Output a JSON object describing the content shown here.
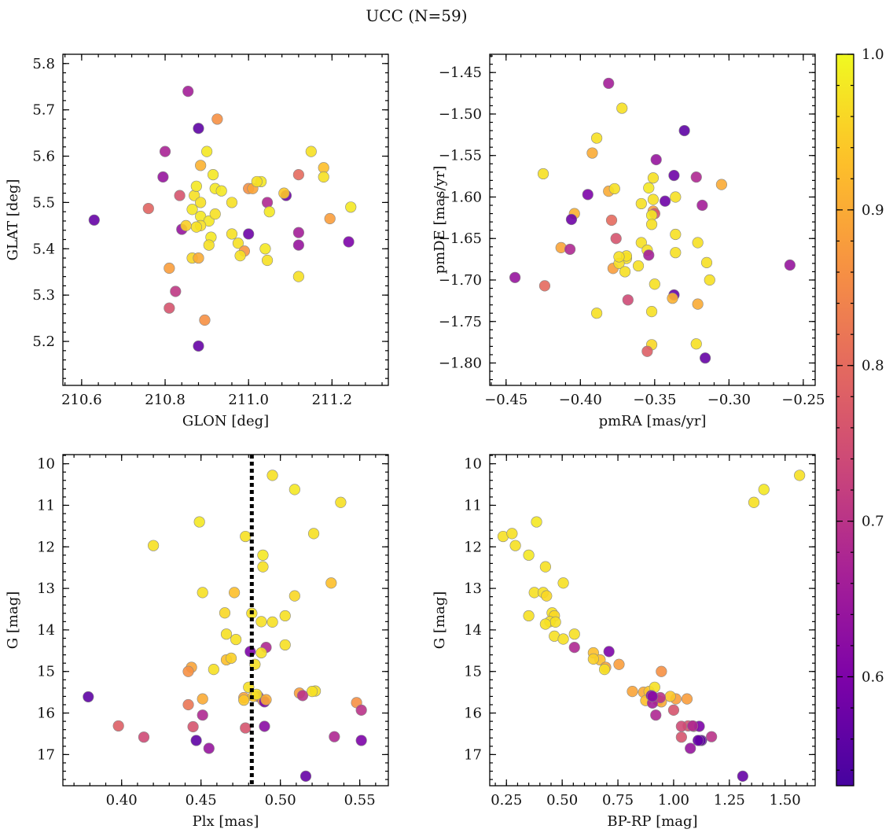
{
  "title": "UCC (N=59)",
  "colorbar": {
    "min": 0.53,
    "max": 1.0,
    "ticks": [
      "0.6",
      "0.7",
      "0.8",
      "0.9",
      "1.0"
    ],
    "tick_values": [
      0.6,
      0.7,
      0.8,
      0.9,
      1.0
    ],
    "colormap": "plasma"
  },
  "chart_data": [
    {
      "type": "scatter",
      "panel": "top-left",
      "xlabel": "GLON [deg]",
      "ylabel": "GLAT [deg]",
      "xlim": [
        210.555,
        211.335
      ],
      "ylim": [
        5.105,
        5.82
      ],
      "y_inverted": false,
      "xticks": [
        "210.6",
        "210.8",
        "211.0",
        "211.2"
      ],
      "xtick_values": [
        210.6,
        210.8,
        211.0,
        211.2
      ],
      "yticks": [
        "5.2",
        "5.3",
        "5.4",
        "5.5",
        "5.6",
        "5.7",
        "5.8"
      ],
      "ytick_values": [
        5.2,
        5.3,
        5.4,
        5.5,
        5.6,
        5.7,
        5.8
      ],
      "x": [
        210.855,
        210.925,
        210.88,
        210.8,
        210.9,
        210.885,
        210.795,
        211.15,
        211.18,
        210.915,
        211.12,
        211.03,
        211.0,
        211.01,
        210.92,
        211.09,
        210.835,
        210.87,
        211.045,
        210.875,
        210.865,
        211.18,
        210.76,
        211.05,
        211.245,
        210.885,
        210.905,
        210.885,
        210.92,
        210.91,
        211.195,
        210.63,
        210.875,
        211.0,
        210.84,
        210.96,
        211.12,
        210.905,
        211.12,
        210.975,
        210.99,
        210.98,
        211.045,
        210.865,
        210.88,
        211.04,
        210.81,
        211.12,
        210.825,
        210.81,
        210.895,
        210.88,
        211.24,
        211.085,
        210.96,
        210.85,
        210.885,
        211.02,
        210.935
      ],
      "y": [
        5.74,
        5.68,
        5.66,
        5.61,
        5.61,
        5.58,
        5.555,
        5.61,
        5.575,
        5.56,
        5.56,
        5.545,
        5.53,
        5.53,
        5.53,
        5.515,
        5.515,
        5.515,
        5.5,
        5.535,
        5.485,
        5.555,
        5.487,
        5.48,
        5.49,
        5.47,
        5.46,
        5.45,
        5.475,
        5.425,
        5.465,
        5.462,
        5.447,
        5.432,
        5.442,
        5.432,
        5.435,
        5.408,
        5.408,
        5.412,
        5.395,
        5.385,
        5.375,
        5.38,
        5.38,
        5.4,
        5.358,
        5.34,
        5.308,
        5.272,
        5.246,
        5.19,
        5.415,
        5.52,
        5.5,
        5.45,
        5.5,
        5.545,
        5.525
      ],
      "c": [
        0.66,
        0.86,
        0.56,
        0.67,
        0.98,
        0.91,
        0.64,
        0.97,
        0.93,
        0.98,
        0.8,
        0.98,
        0.86,
        0.89,
        0.98,
        0.58,
        0.76,
        0.97,
        0.68,
        0.98,
        0.98,
        0.97,
        0.79,
        0.98,
        0.98,
        0.98,
        0.98,
        0.97,
        0.97,
        0.98,
        0.88,
        0.57,
        0.97,
        0.58,
        0.64,
        0.97,
        0.66,
        0.97,
        0.64,
        0.97,
        0.87,
        0.97,
        0.97,
        0.96,
        0.9,
        0.98,
        0.88,
        0.97,
        0.71,
        0.76,
        0.86,
        0.57,
        0.6,
        0.94,
        0.97,
        0.95,
        0.97,
        0.97,
        0.98
      ]
    },
    {
      "type": "scatter",
      "panel": "top-right",
      "xlabel": "pmRA [mas/yr]",
      "ylabel": "pmDE [mas/yr]",
      "xlim": [
        -0.461,
        -0.242
      ],
      "ylim": [
        -1.827,
        -1.428
      ],
      "y_inverted": false,
      "xticks": [
        "−0.45",
        "−0.40",
        "−0.35",
        "−0.30",
        "−0.25"
      ],
      "xtick_values": [
        -0.45,
        -0.4,
        -0.35,
        -0.3,
        -0.25
      ],
      "yticks": [
        "−1.45",
        "−1.50",
        "−1.55",
        "−1.60",
        "−1.65",
        "−1.70",
        "−1.75",
        "−1.80"
      ],
      "ytick_values": [
        -1.45,
        -1.5,
        -1.55,
        -1.6,
        -1.65,
        -1.7,
        -1.75,
        -1.8
      ],
      "x": [
        -0.381,
        -0.372,
        -0.33,
        -0.389,
        -0.392,
        -0.349,
        -0.425,
        -0.351,
        -0.337,
        -0.322,
        -0.305,
        -0.381,
        -0.377,
        -0.354,
        -0.395,
        -0.343,
        -0.351,
        -0.351,
        -0.318,
        -0.359,
        -0.336,
        -0.35,
        -0.404,
        -0.379,
        -0.406,
        -0.352,
        -0.336,
        -0.352,
        -0.413,
        -0.376,
        -0.359,
        -0.369,
        -0.369,
        -0.321,
        -0.378,
        -0.374,
        -0.355,
        -0.37,
        -0.315,
        -0.336,
        -0.374,
        -0.407,
        -0.313,
        -0.444,
        -0.424,
        -0.35,
        -0.337,
        -0.361,
        -0.354,
        -0.338,
        -0.368,
        -0.321,
        -0.389,
        -0.352,
        -0.322,
        -0.352,
        -0.355,
        -0.316,
        -0.259
      ],
      "y": [
        -1.463,
        -1.493,
        -1.52,
        -1.529,
        -1.547,
        -1.555,
        -1.572,
        -1.577,
        -1.574,
        -1.576,
        -1.585,
        -1.593,
        -1.59,
        -1.589,
        -1.597,
        -1.605,
        -1.603,
        -1.617,
        -1.61,
        -1.608,
        -1.6,
        -1.62,
        -1.62,
        -1.628,
        -1.627,
        -1.622,
        -1.645,
        -1.633,
        -1.661,
        -1.65,
        -1.655,
        -1.674,
        -1.671,
        -1.655,
        -1.686,
        -1.68,
        -1.664,
        -1.69,
        -1.679,
        -1.667,
        -1.672,
        -1.663,
        -1.7,
        -1.697,
        -1.707,
        -1.705,
        -1.718,
        -1.683,
        -1.67,
        -1.722,
        -1.724,
        -1.729,
        -1.74,
        -1.738,
        -1.777,
        -1.778,
        -1.786,
        -1.794,
        -1.682
      ],
      "c": [
        0.66,
        0.97,
        0.56,
        0.97,
        0.9,
        0.64,
        0.97,
        0.97,
        0.58,
        0.68,
        0.9,
        0.9,
        0.97,
        0.98,
        0.6,
        0.58,
        0.97,
        0.88,
        0.66,
        0.97,
        0.97,
        0.76,
        0.91,
        0.8,
        0.58,
        0.98,
        0.97,
        0.97,
        0.89,
        0.76,
        0.97,
        0.97,
        0.97,
        0.97,
        0.88,
        0.97,
        0.97,
        0.97,
        0.97,
        0.97,
        0.97,
        0.68,
        0.97,
        0.64,
        0.8,
        0.97,
        0.57,
        0.97,
        0.66,
        0.91,
        0.74,
        0.9,
        0.97,
        0.97,
        0.97,
        0.96,
        0.78,
        0.57,
        0.64
      ]
    },
    {
      "type": "scatter",
      "panel": "bottom-left",
      "xlabel": "Plx [mas]",
      "ylabel": "G [mag]",
      "xlim": [
        0.363,
        0.568
      ],
      "ylim": [
        17.75,
        9.78
      ],
      "y_inverted": true,
      "xticks": [
        "0.40",
        "0.45",
        "0.50",
        "0.55"
      ],
      "xtick_values": [
        0.4,
        0.45,
        0.5,
        0.55
      ],
      "yticks": [
        "10",
        "11",
        "12",
        "13",
        "14",
        "15",
        "16",
        "17"
      ],
      "ytick_values": [
        10,
        11,
        12,
        13,
        14,
        15,
        16,
        17
      ],
      "vline": {
        "x": 0.482,
        "style": "dotted",
        "color": "#000000"
      },
      "x": [
        0.495,
        0.509,
        0.538,
        0.449,
        0.478,
        0.521,
        0.42,
        0.489,
        0.489,
        0.532,
        0.451,
        0.471,
        0.509,
        0.465,
        0.482,
        0.503,
        0.488,
        0.495,
        0.466,
        0.472,
        0.503,
        0.491,
        0.481,
        0.466,
        0.444,
        0.488,
        0.458,
        0.484,
        0.442,
        0.486,
        0.48,
        0.522,
        0.52,
        0.512,
        0.477,
        0.451,
        0.483,
        0.489,
        0.442,
        0.451,
        0.514,
        0.49,
        0.548,
        0.551,
        0.445,
        0.398,
        0.414,
        0.49,
        0.534,
        0.447,
        0.551,
        0.379,
        0.455,
        0.478,
        0.516,
        0.491,
        0.477,
        0.469,
        0.485
      ],
      "y": [
        10.28,
        10.62,
        10.93,
        11.4,
        11.75,
        11.68,
        11.97,
        12.2,
        12.48,
        12.87,
        13.1,
        13.1,
        13.18,
        13.59,
        13.6,
        13.66,
        13.8,
        13.81,
        14.1,
        14.23,
        14.36,
        14.42,
        14.52,
        14.72,
        14.9,
        14.55,
        14.95,
        14.83,
        15.0,
        15.6,
        15.38,
        15.47,
        15.48,
        15.52,
        15.63,
        15.66,
        15.6,
        15.7,
        15.8,
        16.05,
        15.58,
        15.73,
        15.75,
        15.93,
        16.33,
        16.31,
        16.58,
        16.32,
        16.57,
        16.66,
        16.66,
        15.61,
        16.85,
        16.36,
        17.52,
        15.68,
        15.69,
        14.68,
        15.55
      ],
      "c": [
        0.97,
        0.98,
        0.97,
        0.98,
        0.97,
        0.97,
        0.97,
        0.98,
        0.97,
        0.93,
        0.97,
        0.93,
        0.96,
        0.96,
        0.97,
        0.97,
        0.97,
        0.97,
        0.97,
        0.97,
        0.97,
        0.68,
        0.6,
        0.93,
        0.89,
        0.97,
        0.97,
        0.97,
        0.86,
        0.66,
        0.97,
        0.97,
        0.97,
        0.88,
        0.89,
        0.9,
        0.94,
        0.88,
        0.82,
        0.68,
        0.7,
        0.6,
        0.86,
        0.7,
        0.76,
        0.78,
        0.74,
        0.62,
        0.68,
        0.56,
        0.6,
        0.56,
        0.64,
        0.76,
        0.57,
        0.9,
        0.94,
        0.95,
        0.97
      ]
    },
    {
      "type": "scatter",
      "panel": "bottom-right",
      "xlabel": "BP-RP [mag]",
      "ylabel": "G [mag]",
      "xlim": [
        0.175,
        1.635
      ],
      "ylim": [
        17.75,
        9.78
      ],
      "y_inverted": true,
      "xticks": [
        "0.25",
        "0.50",
        "0.75",
        "1.00",
        "1.25",
        "1.50"
      ],
      "xtick_values": [
        0.25,
        0.5,
        0.75,
        1.0,
        1.25,
        1.5
      ],
      "yticks": [
        "10",
        "11",
        "12",
        "13",
        "14",
        "15",
        "16",
        "17"
      ],
      "ytick_values": [
        10,
        11,
        12,
        13,
        14,
        15,
        16,
        17
      ],
      "x": [
        1.565,
        1.405,
        1.36,
        0.385,
        0.235,
        0.275,
        0.29,
        0.35,
        0.425,
        0.505,
        0.375,
        0.415,
        0.43,
        0.455,
        0.35,
        0.465,
        0.445,
        0.47,
        0.425,
        0.555,
        0.465,
        0.555,
        0.71,
        0.64,
        0.67,
        0.695,
        0.755,
        0.69,
        0.945,
        0.815,
        0.865,
        0.89,
        0.915,
        1.01,
        0.93,
        0.945,
        0.985,
        1.06,
        0.875,
        0.905,
        0.94,
        1.0,
        1.065,
        0.9,
        1.035,
        1.09,
        1.125,
        1.115,
        0.92,
        1.035,
        1.085,
        1.17,
        1.12,
        1.11,
        1.075,
        1.31,
        0.505,
        0.64,
        0.905
      ],
      "y": [
        10.28,
        10.62,
        10.93,
        11.4,
        11.75,
        11.68,
        11.97,
        12.2,
        12.48,
        12.87,
        13.1,
        13.1,
        13.18,
        13.59,
        13.66,
        13.66,
        13.8,
        13.81,
        13.86,
        14.1,
        14.15,
        14.42,
        14.52,
        14.55,
        14.72,
        14.9,
        14.83,
        14.95,
        15.0,
        15.48,
        15.5,
        15.48,
        15.38,
        15.66,
        15.7,
        15.73,
        15.6,
        15.66,
        15.7,
        15.76,
        15.63,
        15.93,
        16.31,
        15.58,
        16.32,
        16.32,
        16.66,
        16.32,
        16.05,
        16.58,
        16.31,
        16.57,
        16.66,
        16.66,
        16.85,
        17.52,
        14.22,
        14.7,
        15.6
      ],
      "c": [
        0.97,
        0.98,
        0.97,
        0.98,
        0.97,
        0.97,
        0.97,
        0.98,
        0.97,
        0.97,
        0.97,
        0.97,
        0.96,
        0.97,
        0.97,
        0.96,
        0.97,
        0.97,
        0.97,
        0.97,
        0.97,
        0.68,
        0.6,
        0.93,
        0.93,
        0.89,
        0.88,
        0.97,
        0.86,
        0.89,
        0.9,
        0.94,
        0.97,
        0.88,
        0.82,
        0.9,
        0.94,
        0.88,
        0.93,
        0.66,
        0.7,
        0.76,
        0.76,
        0.6,
        0.74,
        0.78,
        0.56,
        0.6,
        0.68,
        0.76,
        0.68,
        0.7,
        0.56,
        0.57,
        0.64,
        0.57,
        0.97,
        0.95,
        0.62
      ]
    }
  ]
}
